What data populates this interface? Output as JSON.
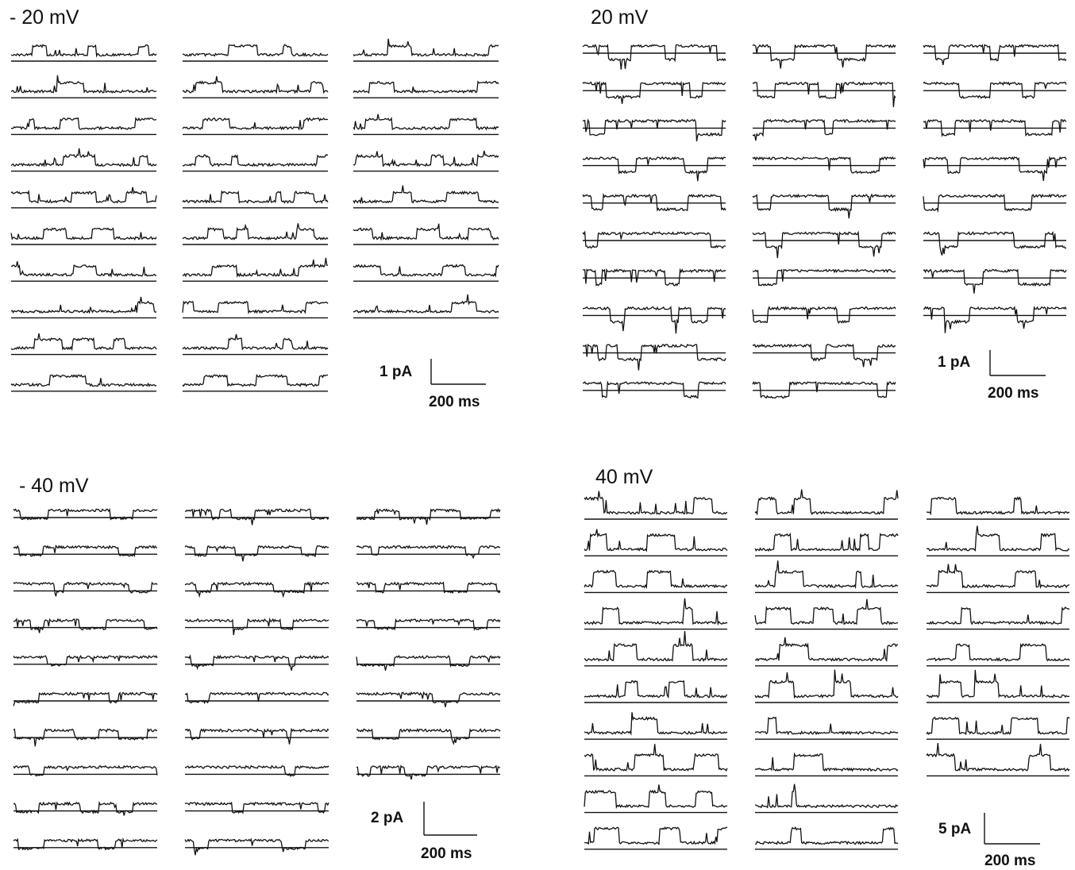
{
  "panels": [
    {
      "id": "neg20",
      "title": "- 20 mV",
      "scale_current": "1 pA",
      "scale_time": "200 ms",
      "columns": [
        10,
        10,
        8
      ],
      "events": "upward"
    },
    {
      "id": "pos20",
      "title": "20 mV",
      "scale_current": "1 pA",
      "scale_time": "200 ms",
      "columns": [
        10,
        10,
        8
      ],
      "events": "downward"
    },
    {
      "id": "neg40",
      "title": "- 40 mV",
      "scale_current": "2 pA",
      "scale_time": "200 ms",
      "columns": [
        10,
        10,
        8
      ],
      "events": "downward"
    },
    {
      "id": "pos40",
      "title": "40 mV",
      "scale_current": "5 pA",
      "scale_time": "200 ms",
      "columns": [
        10,
        10,
        8
      ],
      "events": "upward"
    }
  ],
  "colors": {
    "trace": "#111111",
    "background": "#ffffff"
  }
}
